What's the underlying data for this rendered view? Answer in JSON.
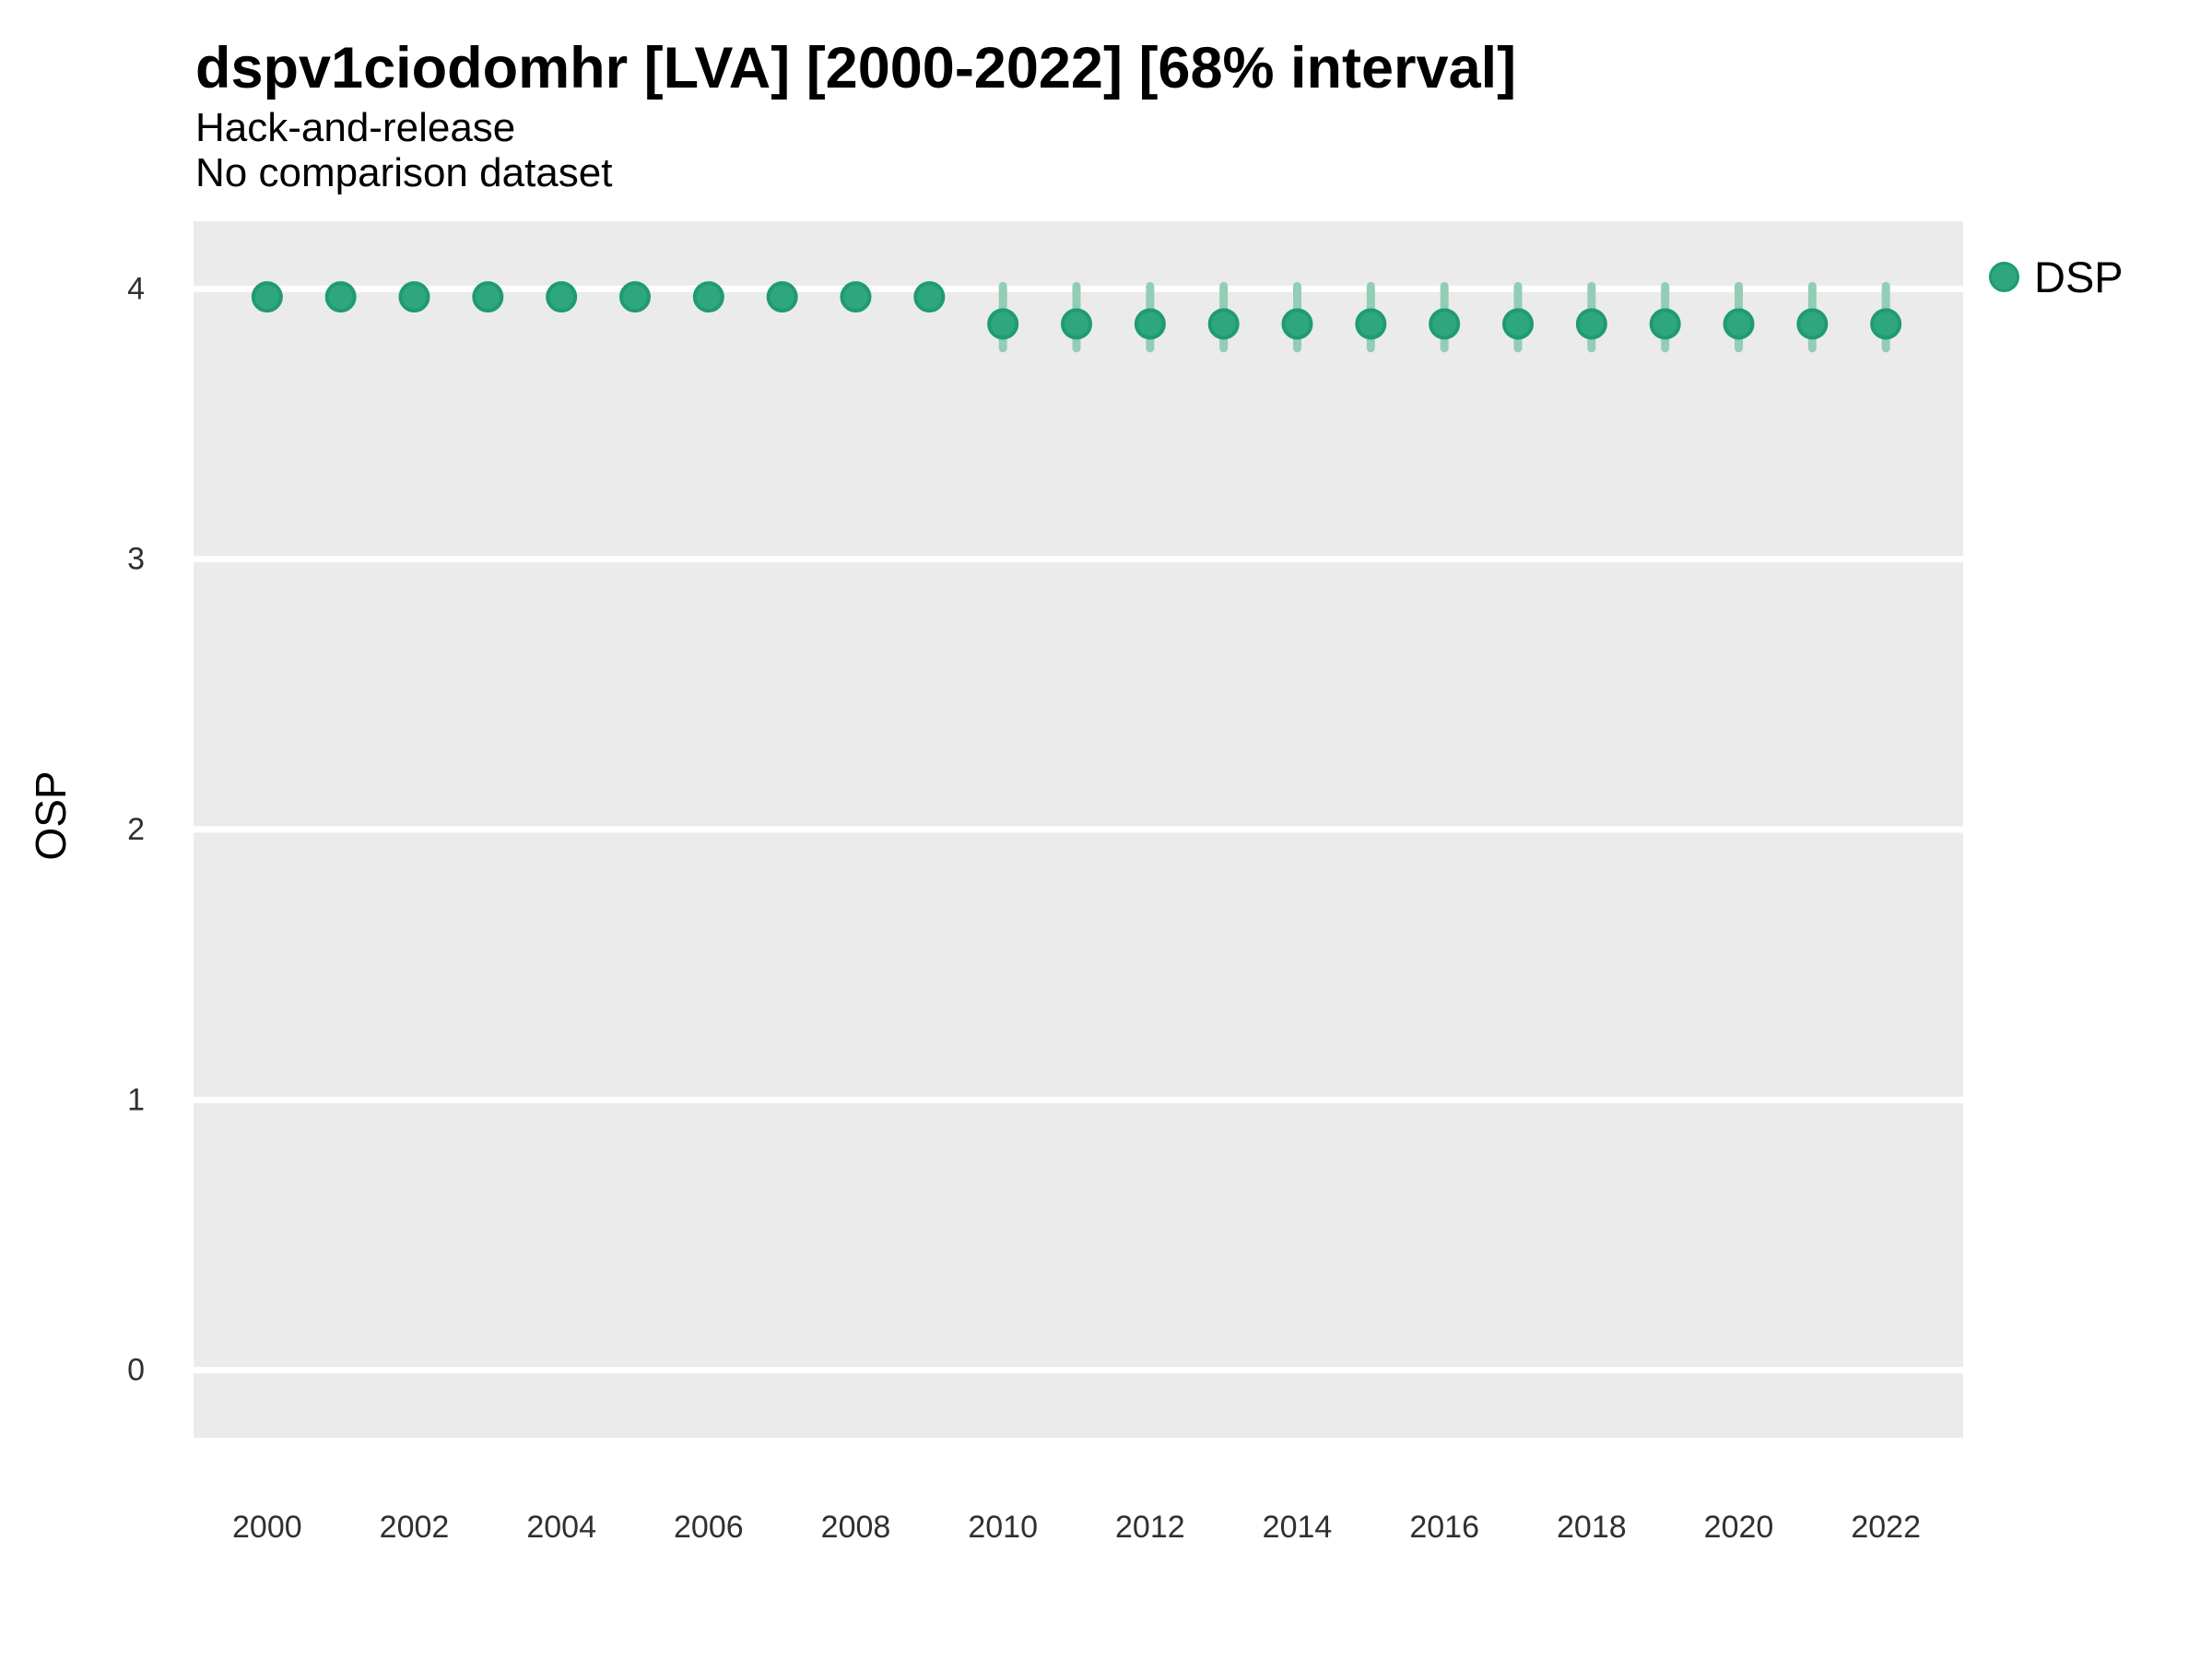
{
  "header": {
    "title": "dspv1ciodomhr [LVA] [2000-2022] [68% interval]",
    "subtitle1": "Hack-and-release",
    "subtitle2": "No comparison dataset"
  },
  "legend": {
    "label": "DSP"
  },
  "colors": {
    "point_fill": "#2EA77E",
    "point_stroke": "#1F9B71",
    "interval": "#93CDB5",
    "panel_background": "#EBEBEB",
    "gridline": "#FFFFFF",
    "tick_text": "#303030",
    "text": "#000000"
  },
  "chart_data": {
    "type": "scatter",
    "title": "dspv1ciodomhr [LVA] [2000-2022] [68% interval]",
    "subtitle": "Hack-and-release / No comparison dataset",
    "xlabel": "",
    "ylabel": "OSP",
    "legend_position": "right",
    "grid": "major-horizontal-white-on-gray",
    "x": [
      2000,
      2001,
      2002,
      2003,
      2004,
      2005,
      2006,
      2007,
      2008,
      2009,
      2010,
      2011,
      2012,
      2013,
      2014,
      2015,
      2016,
      2017,
      2018,
      2019,
      2020,
      2021,
      2022
    ],
    "series": [
      {
        "name": "DSP",
        "values": [
          3.97,
          3.97,
          3.97,
          3.97,
          3.97,
          3.97,
          3.97,
          3.97,
          3.97,
          3.97,
          3.87,
          3.87,
          3.87,
          3.87,
          3.87,
          3.87,
          3.87,
          3.87,
          3.87,
          3.87,
          3.87,
          3.87,
          3.87
        ],
        "lower": [
          3.97,
          3.97,
          3.97,
          3.97,
          3.97,
          3.97,
          3.97,
          3.97,
          3.97,
          3.97,
          3.78,
          3.78,
          3.78,
          3.78,
          3.78,
          3.78,
          3.78,
          3.78,
          3.78,
          3.78,
          3.78,
          3.78,
          3.78
        ],
        "upper": [
          3.97,
          3.97,
          3.97,
          3.97,
          3.97,
          3.97,
          3.97,
          3.97,
          3.97,
          3.97,
          4.01,
          4.01,
          4.01,
          4.01,
          4.01,
          4.01,
          4.01,
          4.01,
          4.01,
          4.01,
          4.01,
          4.01,
          4.01
        ]
      }
    ],
    "xticks": [
      2000,
      2002,
      2004,
      2006,
      2008,
      2010,
      2012,
      2014,
      2016,
      2018,
      2020,
      2022
    ],
    "yticks": [
      0,
      1,
      2,
      3,
      4
    ],
    "xlim": [
      1999,
      2023.05
    ],
    "ylim": [
      -0.25,
      4.25
    ]
  }
}
